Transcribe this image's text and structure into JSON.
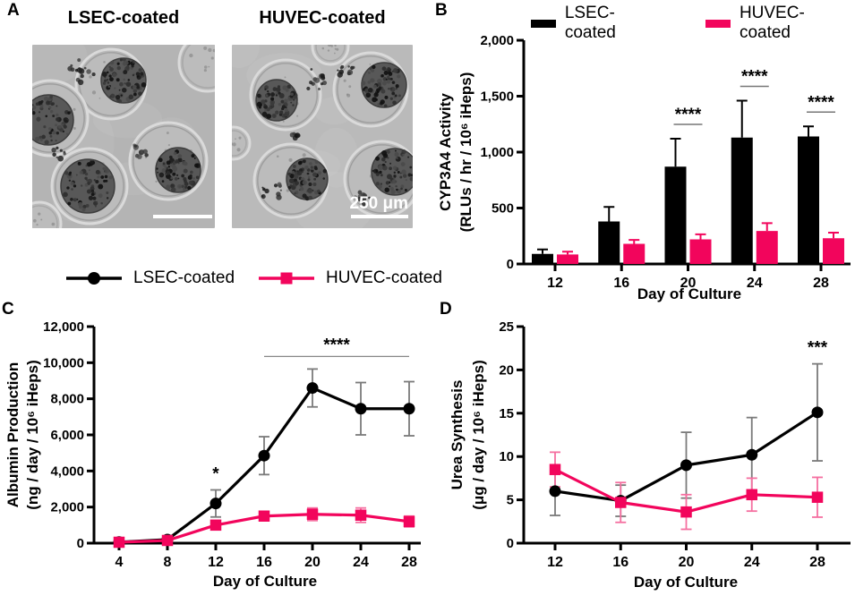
{
  "figure": {
    "panels": {
      "A": {
        "label": "A",
        "images": [
          {
            "title": "LSEC-coated"
          },
          {
            "title": "HUVEC-coated"
          }
        ],
        "scale_bar_label": "250 μm"
      },
      "B": {
        "label": "B"
      },
      "C": {
        "label": "C"
      },
      "D": {
        "label": "D"
      }
    },
    "bar_legend": [
      {
        "name": "LSEC-coated",
        "color": "#000000"
      },
      {
        "name": "HUVEC-coated",
        "color": "#F2055C"
      }
    ],
    "line_legend": [
      {
        "name": "LSEC-coated",
        "color": "#000000",
        "marker": "circle"
      },
      {
        "name": "HUVEC-coated",
        "color": "#F2055C",
        "marker": "square"
      }
    ]
  },
  "chart_data": [
    {
      "id": "B",
      "type": "bar",
      "xlabel": "Day of Culture",
      "ylabel_lines": [
        "CYP3A4 Activity",
        "(RLUs / hr / 10⁶ iHeps)"
      ],
      "categories": [
        12,
        16,
        20,
        24,
        28
      ],
      "series": [
        {
          "name": "LSEC-coated",
          "color": "#000000",
          "values": [
            90,
            380,
            870,
            1130,
            1140
          ],
          "errors_up": [
            40,
            130,
            250,
            330,
            90
          ]
        },
        {
          "name": "HUVEC-coated",
          "color": "#F2055C",
          "values": [
            85,
            180,
            220,
            295,
            230
          ],
          "errors_up": [
            25,
            35,
            45,
            70,
            50
          ]
        }
      ],
      "ylim": [
        0,
        2000
      ],
      "yticks": [
        0,
        500,
        1000,
        1500,
        2000
      ],
      "ytick_labels": [
        "0",
        "500",
        "1,000",
        "1,500",
        "2,000"
      ],
      "significance": [
        {
          "category": 20,
          "label": "****"
        },
        {
          "category": 24,
          "label": "****"
        },
        {
          "category": 28,
          "label": "****"
        }
      ],
      "legend_position": "top",
      "grid": false
    },
    {
      "id": "C",
      "type": "line",
      "xlabel": "Day of Culture",
      "ylabel_lines": [
        "Albumin Production",
        "(ng / day / 10⁶ iHeps)"
      ],
      "x": [
        4,
        8,
        12,
        16,
        20,
        24,
        28
      ],
      "series": [
        {
          "name": "LSEC-coated",
          "color": "#000000",
          "marker": "circle",
          "values": [
            60,
            200,
            2200,
            4850,
            8600,
            7450,
            7450
          ],
          "errors": [
            30,
            80,
            750,
            1050,
            1050,
            1450,
            1500
          ]
        },
        {
          "name": "HUVEC-coated",
          "color": "#F2055C",
          "marker": "square",
          "values": [
            50,
            150,
            1000,
            1500,
            1600,
            1550,
            1200
          ],
          "errors": [
            20,
            50,
            150,
            150,
            350,
            400,
            300
          ]
        }
      ],
      "ylim": [
        0,
        12000
      ],
      "yticks": [
        0,
        2000,
        4000,
        6000,
        8000,
        10000,
        12000
      ],
      "ytick_labels": [
        "0",
        "2,000",
        "4,000",
        "6,000",
        "8,000",
        "10,000",
        "12,000"
      ],
      "significance": [
        {
          "x": 12,
          "label": "*"
        },
        {
          "from": 16,
          "to": 28,
          "label": "****"
        }
      ],
      "legend_position": "top",
      "grid": false
    },
    {
      "id": "D",
      "type": "line",
      "xlabel": "Day of Culture",
      "ylabel_lines": [
        "Urea Synthesis",
        "(μg / day / 10⁶ iHeps)"
      ],
      "x": [
        12,
        16,
        20,
        24,
        28
      ],
      "series": [
        {
          "name": "LSEC-coated",
          "color": "#000000",
          "marker": "circle",
          "values": [
            6.0,
            4.9,
            9.0,
            10.2,
            15.1
          ],
          "errors": [
            2.8,
            1.8,
            3.8,
            4.3,
            5.6
          ]
        },
        {
          "name": "HUVEC-coated",
          "color": "#F2055C",
          "marker": "square",
          "values": [
            8.5,
            4.7,
            3.6,
            5.6,
            5.3
          ],
          "errors": [
            2.0,
            2.3,
            2.0,
            1.9,
            2.3
          ]
        }
      ],
      "ylim": [
        0,
        25
      ],
      "yticks": [
        0,
        5,
        10,
        15,
        20,
        25
      ],
      "ytick_labels": [
        "0",
        "5",
        "10",
        "15",
        "20",
        "25"
      ],
      "significance": [
        {
          "x": 28,
          "label": "***"
        }
      ],
      "legend_position": "top",
      "grid": false
    }
  ]
}
